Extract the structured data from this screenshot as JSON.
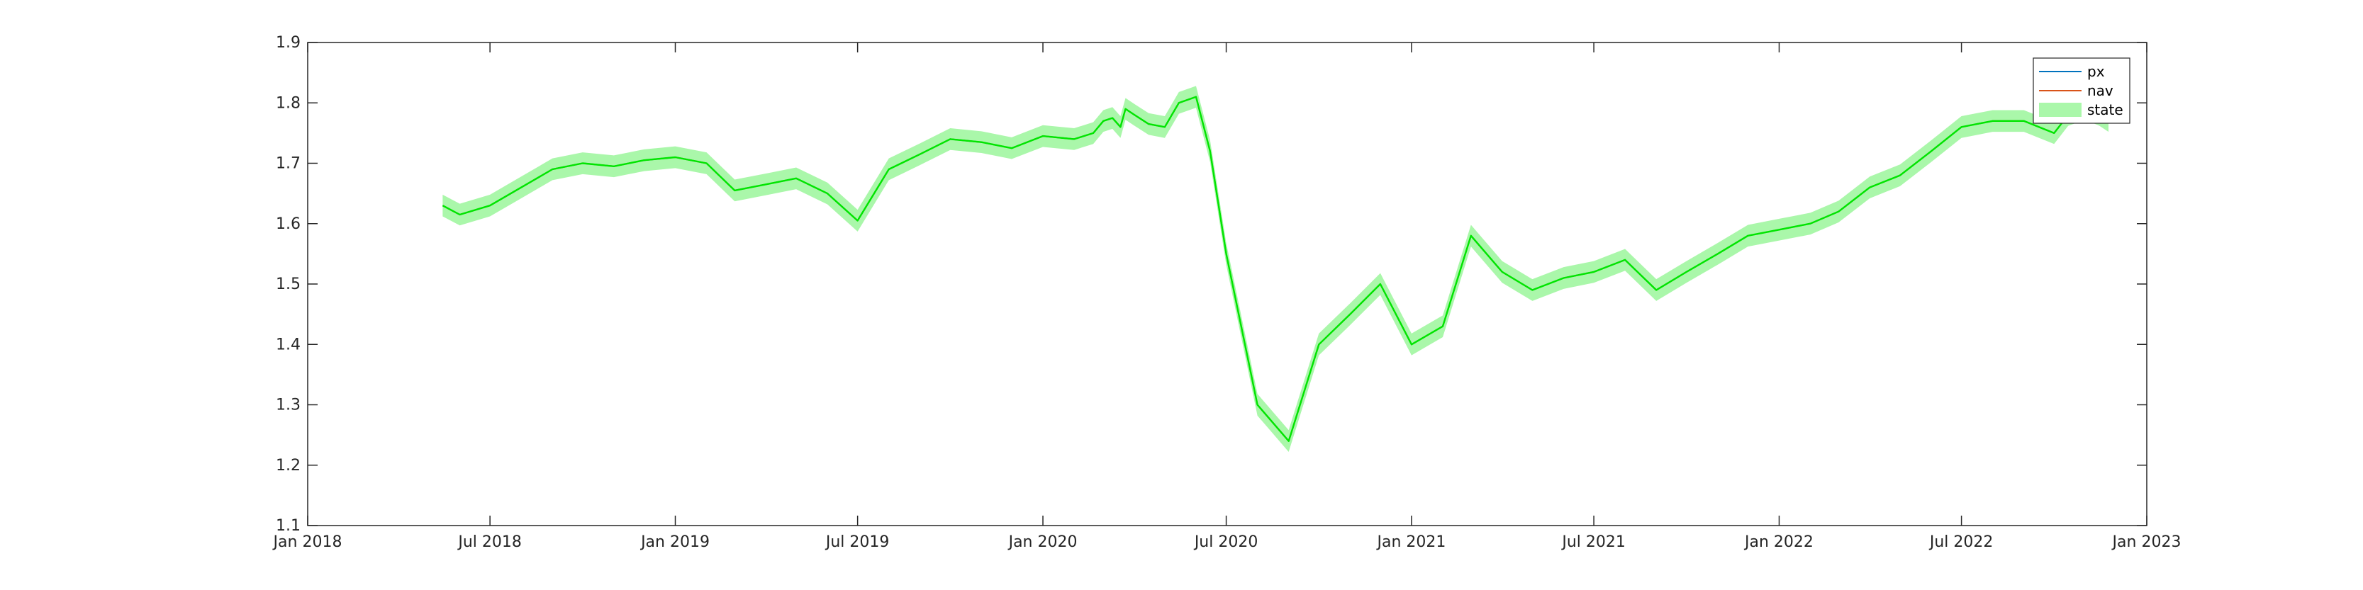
{
  "chart_data": {
    "type": "line",
    "title": "",
    "xlabel": "",
    "ylabel": "",
    "x_range": [
      "2018-01-01",
      "2023-01-01"
    ],
    "ylim": [
      1.1,
      1.9
    ],
    "grid": false,
    "legend_position": "top-right",
    "x_tick_labels": [
      "Jan 2018",
      "Jul 2018",
      "Jan 2019",
      "Jul 2019",
      "Jan 2020",
      "Jul 2020",
      "Jan 2021",
      "Jul 2021",
      "Jan 2022",
      "Jul 2022",
      "Jan 2023"
    ],
    "x_tick_dates": [
      "2018-01-01",
      "2018-07-01",
      "2019-01-01",
      "2019-07-01",
      "2020-01-01",
      "2020-07-01",
      "2021-01-01",
      "2021-07-01",
      "2022-01-01",
      "2022-07-01",
      "2023-01-01"
    ],
    "y_ticks": [
      1.1,
      1.2,
      1.3,
      1.4,
      1.5,
      1.6,
      1.7,
      1.8,
      1.9
    ],
    "y_tick_labels": [
      "1.1",
      "1.2",
      "1.3",
      "1.4",
      "1.5",
      "1.6",
      "1.7",
      "1.8",
      "1.9"
    ],
    "band_halfwidth": 0.018,
    "dates": [
      "2018-05-15",
      "2018-06-01",
      "2018-07-01",
      "2018-08-01",
      "2018-09-01",
      "2018-10-01",
      "2018-11-01",
      "2018-12-01",
      "2019-01-01",
      "2019-02-01",
      "2019-03-01",
      "2019-04-01",
      "2019-05-01",
      "2019-06-01",
      "2019-07-01",
      "2019-08-01",
      "2019-09-01",
      "2019-10-01",
      "2019-11-01",
      "2019-12-01",
      "2020-01-01",
      "2020-02-01",
      "2020-02-20",
      "2020-03-01",
      "2020-03-10",
      "2020-03-18",
      "2020-03-23",
      "2020-04-01",
      "2020-04-15",
      "2020-05-01",
      "2020-05-15",
      "2020-06-01",
      "2020-06-15",
      "2020-07-01",
      "2020-08-01",
      "2020-09-01",
      "2020-10-01",
      "2020-11-01",
      "2020-12-01",
      "2021-01-01",
      "2021-02-01",
      "2021-03-01",
      "2021-04-01",
      "2021-05-01",
      "2021-06-01",
      "2021-07-01",
      "2021-08-01",
      "2021-09-01",
      "2021-10-01",
      "2021-11-01",
      "2021-12-01",
      "2022-01-01",
      "2022-02-01",
      "2022-03-01",
      "2022-04-01",
      "2022-05-01",
      "2022-06-01",
      "2022-07-01",
      "2022-08-01",
      "2022-09-01",
      "2022-10-01",
      "2022-10-15",
      "2022-11-01",
      "2022-11-15",
      "2022-11-24"
    ],
    "series": [
      {
        "name": "px",
        "color": "#0072bd",
        "values": [
          1.63,
          1.615,
          1.63,
          1.66,
          1.69,
          1.7,
          1.695,
          1.705,
          1.71,
          1.7,
          1.655,
          1.665,
          1.675,
          1.65,
          1.605,
          1.69,
          1.715,
          1.74,
          1.735,
          1.725,
          1.745,
          1.74,
          1.75,
          1.77,
          1.775,
          1.76,
          1.79,
          1.78,
          1.765,
          1.76,
          1.8,
          1.81,
          1.72,
          1.55,
          1.3,
          1.24,
          1.4,
          1.45,
          1.5,
          1.4,
          1.43,
          1.58,
          1.52,
          1.49,
          1.51,
          1.52,
          1.54,
          1.49,
          1.52,
          1.55,
          1.58,
          1.59,
          1.6,
          1.62,
          1.66,
          1.68,
          1.72,
          1.76,
          1.77,
          1.77,
          1.75,
          1.78,
          1.79,
          1.78,
          1.77
        ]
      },
      {
        "name": "nav",
        "color": "#d95319",
        "values": [
          1.63,
          1.615,
          1.63,
          1.66,
          1.69,
          1.7,
          1.695,
          1.705,
          1.71,
          1.7,
          1.655,
          1.665,
          1.675,
          1.65,
          1.605,
          1.69,
          1.715,
          1.74,
          1.735,
          1.725,
          1.745,
          1.74,
          1.75,
          1.77,
          1.775,
          1.76,
          1.79,
          1.78,
          1.765,
          1.76,
          1.8,
          1.81,
          1.72,
          1.55,
          1.3,
          1.24,
          1.4,
          1.45,
          1.5,
          1.4,
          1.43,
          1.58,
          1.52,
          1.49,
          1.51,
          1.52,
          1.54,
          1.49,
          1.52,
          1.55,
          1.58,
          1.59,
          1.6,
          1.62,
          1.66,
          1.68,
          1.72,
          1.76,
          1.77,
          1.77,
          1.75,
          1.78,
          1.79,
          1.78,
          1.77
        ]
      },
      {
        "name": "state",
        "color": "#00e600",
        "band_color": "#aaf7aa",
        "values": [
          1.63,
          1.615,
          1.63,
          1.66,
          1.69,
          1.7,
          1.695,
          1.705,
          1.71,
          1.7,
          1.655,
          1.665,
          1.675,
          1.65,
          1.605,
          1.69,
          1.715,
          1.74,
          1.735,
          1.725,
          1.745,
          1.74,
          1.75,
          1.77,
          1.775,
          1.76,
          1.79,
          1.78,
          1.765,
          1.76,
          1.8,
          1.81,
          1.72,
          1.55,
          1.3,
          1.24,
          1.4,
          1.45,
          1.5,
          1.4,
          1.43,
          1.58,
          1.52,
          1.49,
          1.51,
          1.52,
          1.54,
          1.49,
          1.52,
          1.55,
          1.58,
          1.59,
          1.6,
          1.62,
          1.66,
          1.68,
          1.72,
          1.76,
          1.77,
          1.77,
          1.75,
          1.78,
          1.79,
          1.78,
          1.77
        ]
      }
    ]
  }
}
